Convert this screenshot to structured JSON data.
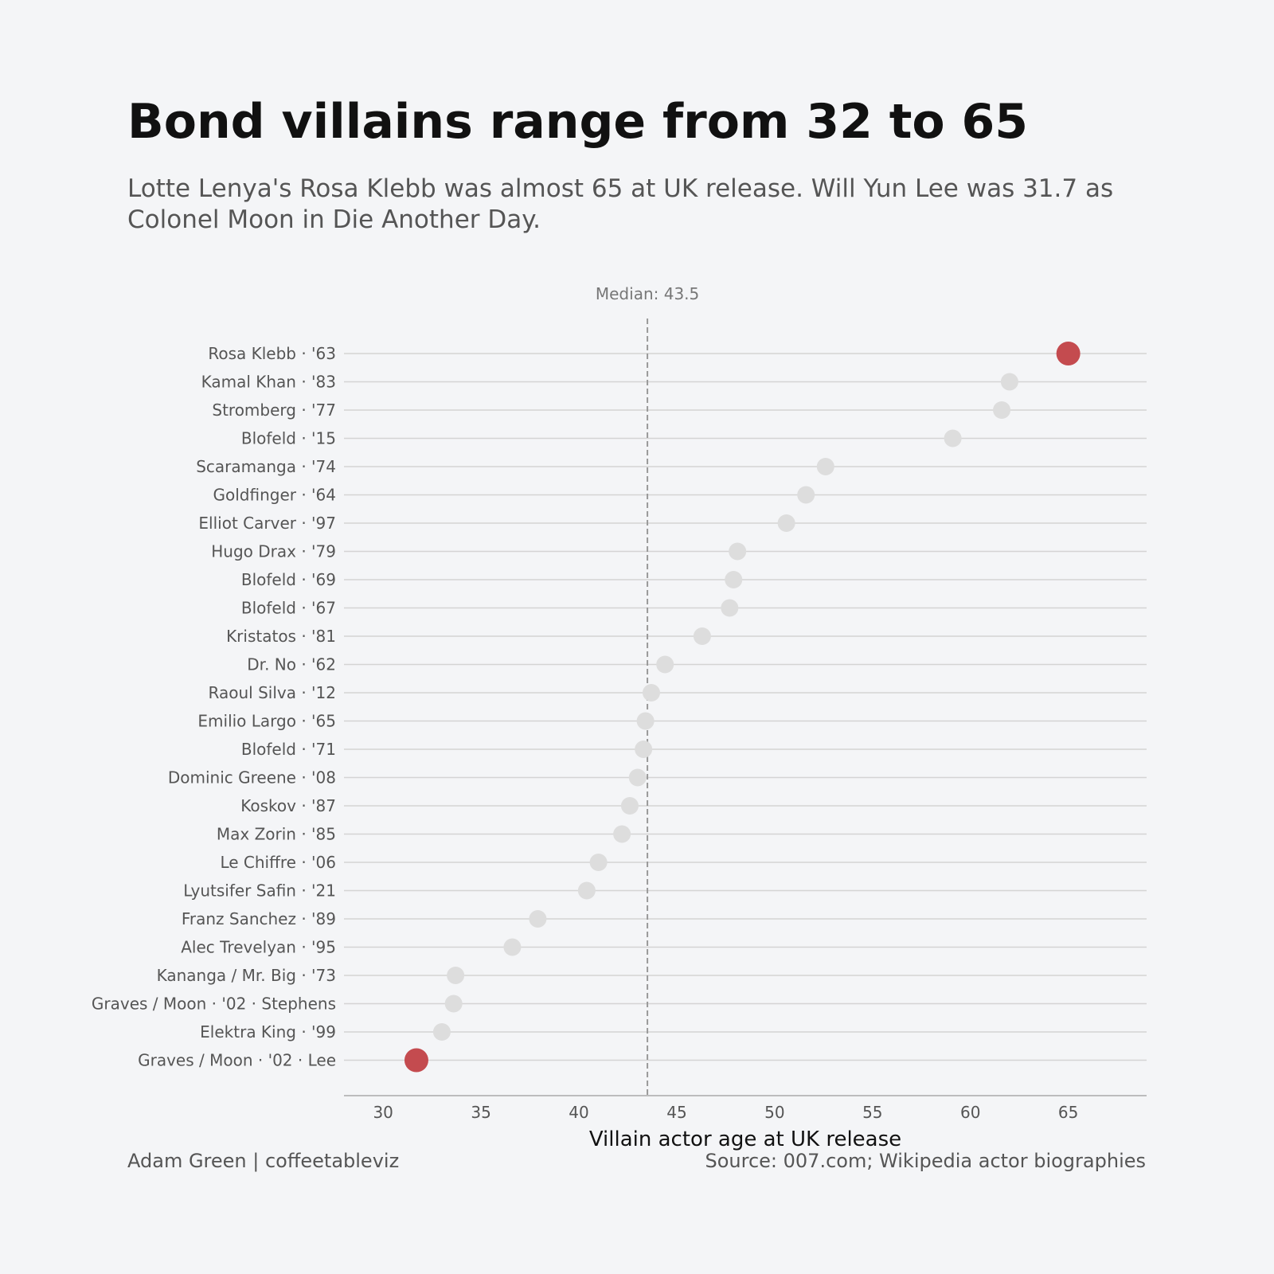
{
  "title": "Bond villains range from 32 to 65",
  "subtitle": "Lotte Lenya's Rosa Klebb was almost 65 at UK release. Will Yun Lee was 31.7 as Colonel Moon in Die Another Day.",
  "footer": {
    "credit": "Adam Green | coffeetableviz",
    "source": "Source: 007.com; Wikipedia actor biographies"
  },
  "colors": {
    "background": "#f4f5f7",
    "highlight": "#c44b4f",
    "dot": "#dddddd",
    "row_line": "#d4d4d4",
    "median_line": "#999999"
  },
  "chart_data": {
    "type": "scatter",
    "orientation": "horizontal-dot-plot",
    "title": "Bond villains range from 32 to 65",
    "xlabel": "Villain actor age at UK release",
    "ylabel": "",
    "xlim": [
      28,
      69
    ],
    "xticks": [
      30,
      35,
      40,
      45,
      50,
      55,
      60,
      65
    ],
    "median": {
      "value": 43.5,
      "label": "Median: 43.5"
    },
    "categories": [
      "Rosa Klebb · '63",
      "Kamal Khan · '83",
      "Stromberg · '77",
      "Blofeld · '15",
      "Scaramanga · '74",
      "Goldfinger · '64",
      "Elliot Carver · '97",
      "Hugo Drax · '79",
      "Blofeld · '69",
      "Blofeld · '67",
      "Kristatos · '81",
      "Dr. No · '62",
      "Raoul Silva · '12",
      "Emilio Largo · '65",
      "Blofeld · '71",
      "Dominic Greene · '08",
      "Koskov · '87",
      "Max Zorin · '85",
      "Le Chiffre · '06",
      "Lyutsifer Safin · '21",
      "Franz Sanchez · '89",
      "Alec Trevelyan · '95",
      "Kananga / Mr. Big · '73",
      "Graves / Moon · '02 · Stephens",
      "Elektra King · '99",
      "Graves / Moon · '02 · Lee"
    ],
    "values": [
      65.0,
      62.0,
      61.6,
      59.1,
      52.6,
      51.6,
      50.6,
      48.1,
      47.9,
      47.7,
      46.3,
      44.4,
      43.7,
      43.4,
      43.3,
      43.0,
      42.6,
      42.2,
      41.0,
      40.4,
      37.9,
      36.6,
      33.7,
      33.6,
      33.0,
      31.7
    ],
    "highlighted": [
      0,
      25
    ],
    "grid": false,
    "legend": "none"
  }
}
